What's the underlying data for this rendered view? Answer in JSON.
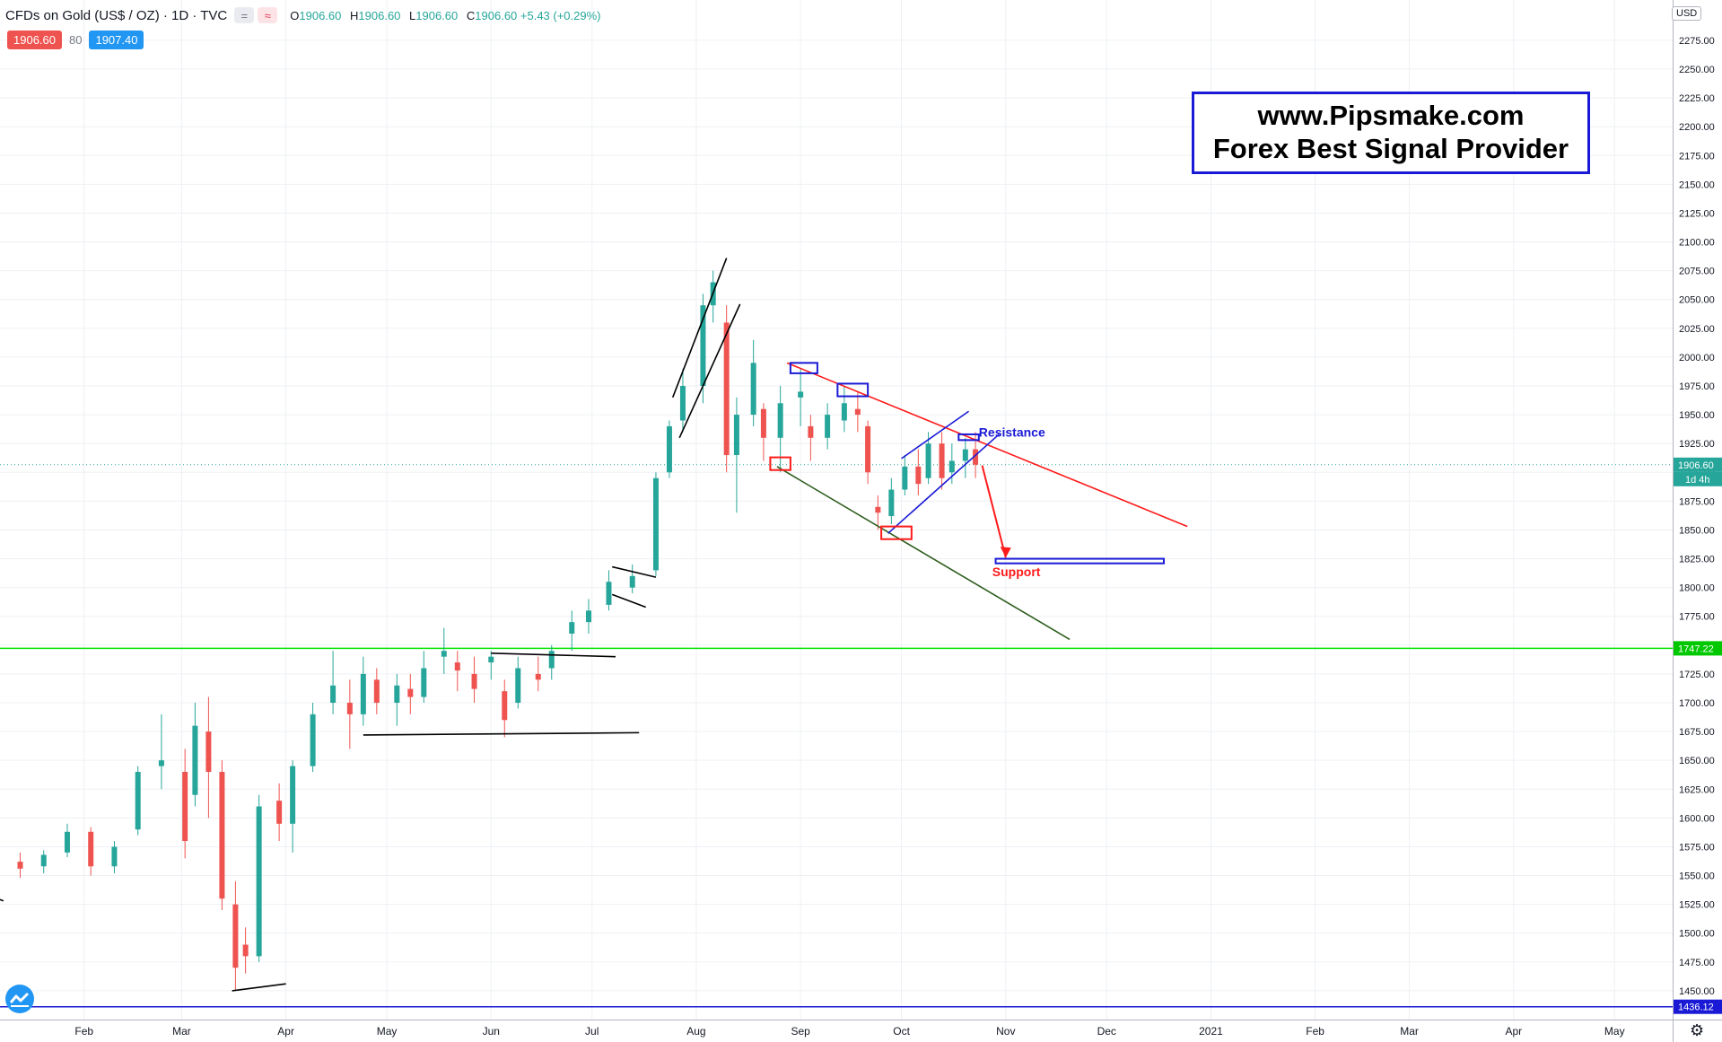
{
  "header": {
    "title": "CFDs on Gold (US$ / OZ) · 1D · TVC",
    "btn_grey": "=",
    "btn_pink": "≈",
    "open_k": "O",
    "open_v": "1906.60",
    "high_k": "H",
    "high_v": "1906.60",
    "low_k": "L",
    "low_v": "1906.60",
    "close_k": "C",
    "close_v": "1906.60 +5.43 (+0.29%)"
  },
  "prices": {
    "bid": "1906.60",
    "spread": "80",
    "ask": "1907.40"
  },
  "currency": "USD",
  "banner": {
    "line1": "www.Pipsmake.com",
    "line2": "Forex Best Signal Provider"
  },
  "colors": {
    "up": "#26a69a",
    "down": "#ef5350",
    "grid": "#eef0f4",
    "green_line": "#00e600",
    "blue": "#1a1ad6",
    "red": "#ff1a1a",
    "dark_green": "#2e5e1e"
  },
  "icons": {
    "logo": "tradingview-logo-icon",
    "settings": "gear-icon"
  },
  "chart_data": {
    "type": "candlestick",
    "ylim": [
      1425,
      2310
    ],
    "y_ticks": [
      1450,
      1475,
      1500,
      1525,
      1550,
      1575,
      1600,
      1625,
      1650,
      1675,
      1700,
      1725,
      1750,
      1775,
      1800,
      1825,
      1850,
      1875,
      1900,
      1925,
      1950,
      1975,
      2000,
      2025,
      2050,
      2075,
      2100,
      2125,
      2150,
      2175,
      2200,
      2225,
      2250,
      2275
    ],
    "x_ticks": [
      {
        "label": "Feb",
        "t": "2020-02-01"
      },
      {
        "label": "Mar",
        "t": "2020-03-01"
      },
      {
        "label": "Apr",
        "t": "2020-04-01"
      },
      {
        "label": "May",
        "t": "2020-05-01"
      },
      {
        "label": "Jun",
        "t": "2020-06-01"
      },
      {
        "label": "Jul",
        "t": "2020-07-01"
      },
      {
        "label": "Aug",
        "t": "2020-08-01"
      },
      {
        "label": "Sep",
        "t": "2020-09-01"
      },
      {
        "label": "Oct",
        "t": "2020-10-01"
      },
      {
        "label": "Nov",
        "t": "2020-11-01"
      },
      {
        "label": "Dec",
        "t": "2020-12-01"
      },
      {
        "label": "2021",
        "t": "2021-01-01"
      },
      {
        "label": "Feb",
        "t": "2021-02-01"
      },
      {
        "label": "Mar",
        "t": "2021-03-01"
      },
      {
        "label": "Apr",
        "t": "2021-04-01"
      },
      {
        "label": "May",
        "t": "2021-05-01"
      }
    ],
    "price_labels": [
      {
        "value": 1906.6,
        "label": "1906.60",
        "sub": "1d 4h",
        "color": "#26a69a"
      },
      {
        "value": 1747.22,
        "label": "1747.22",
        "color": "#00c800"
      },
      {
        "value": 1436.12,
        "label": "1436.12",
        "color": "#1a1ad6"
      }
    ],
    "horizontal_lines": [
      {
        "value": 1747.22,
        "color": "#00e600"
      },
      {
        "value": 1436.12,
        "color": "#1a1ad6"
      }
    ],
    "candles": [
      {
        "t": "2020-01-06",
        "o": 1565,
        "h": 1585,
        "l": 1558,
        "c": 1574
      },
      {
        "t": "2020-01-13",
        "o": 1562,
        "h": 1570,
        "l": 1548,
        "c": 1556
      },
      {
        "t": "2020-01-20",
        "o": 1558,
        "h": 1572,
        "l": 1552,
        "c": 1568
      },
      {
        "t": "2020-01-27",
        "o": 1570,
        "h": 1595,
        "l": 1566,
        "c": 1588
      },
      {
        "t": "2020-02-03",
        "o": 1588,
        "h": 1592,
        "l": 1550,
        "c": 1558
      },
      {
        "t": "2020-02-10",
        "o": 1558,
        "h": 1580,
        "l": 1552,
        "c": 1575
      },
      {
        "t": "2020-02-17",
        "o": 1590,
        "h": 1645,
        "l": 1585,
        "c": 1640
      },
      {
        "t": "2020-02-24",
        "o": 1645,
        "h": 1690,
        "l": 1625,
        "c": 1650
      },
      {
        "t": "2020-03-02",
        "o": 1640,
        "h": 1660,
        "l": 1565,
        "c": 1580
      },
      {
        "t": "2020-03-05",
        "o": 1620,
        "h": 1700,
        "l": 1610,
        "c": 1680
      },
      {
        "t": "2020-03-09",
        "o": 1675,
        "h": 1705,
        "l": 1600,
        "c": 1640
      },
      {
        "t": "2020-03-13",
        "o": 1640,
        "h": 1650,
        "l": 1520,
        "c": 1530
      },
      {
        "t": "2020-03-17",
        "o": 1525,
        "h": 1545,
        "l": 1450,
        "c": 1470
      },
      {
        "t": "2020-03-20",
        "o": 1490,
        "h": 1505,
        "l": 1465,
        "c": 1480
      },
      {
        "t": "2020-03-24",
        "o": 1480,
        "h": 1620,
        "l": 1475,
        "c": 1610
      },
      {
        "t": "2020-03-30",
        "o": 1615,
        "h": 1630,
        "l": 1580,
        "c": 1595
      },
      {
        "t": "2020-04-03",
        "o": 1595,
        "h": 1650,
        "l": 1570,
        "c": 1645
      },
      {
        "t": "2020-04-09",
        "o": 1645,
        "h": 1700,
        "l": 1640,
        "c": 1690
      },
      {
        "t": "2020-04-15",
        "o": 1700,
        "h": 1745,
        "l": 1690,
        "c": 1715
      },
      {
        "t": "2020-04-20",
        "o": 1700,
        "h": 1720,
        "l": 1660,
        "c": 1690
      },
      {
        "t": "2020-04-24",
        "o": 1690,
        "h": 1740,
        "l": 1680,
        "c": 1725
      },
      {
        "t": "2020-04-28",
        "o": 1720,
        "h": 1730,
        "l": 1690,
        "c": 1700
      },
      {
        "t": "2020-05-04",
        "o": 1700,
        "h": 1725,
        "l": 1680,
        "c": 1715
      },
      {
        "t": "2020-05-08",
        "o": 1712,
        "h": 1725,
        "l": 1690,
        "c": 1705
      },
      {
        "t": "2020-05-12",
        "o": 1705,
        "h": 1745,
        "l": 1700,
        "c": 1730
      },
      {
        "t": "2020-05-18",
        "o": 1740,
        "h": 1765,
        "l": 1725,
        "c": 1745
      },
      {
        "t": "2020-05-22",
        "o": 1735,
        "h": 1745,
        "l": 1710,
        "c": 1728
      },
      {
        "t": "2020-05-27",
        "o": 1725,
        "h": 1740,
        "l": 1700,
        "c": 1712
      },
      {
        "t": "2020-06-01",
        "o": 1735,
        "h": 1745,
        "l": 1720,
        "c": 1740
      },
      {
        "t": "2020-06-05",
        "o": 1710,
        "h": 1720,
        "l": 1670,
        "c": 1685
      },
      {
        "t": "2020-06-09",
        "o": 1700,
        "h": 1740,
        "l": 1695,
        "c": 1730
      },
      {
        "t": "2020-06-15",
        "o": 1725,
        "h": 1740,
        "l": 1710,
        "c": 1720
      },
      {
        "t": "2020-06-19",
        "o": 1730,
        "h": 1750,
        "l": 1720,
        "c": 1745
      },
      {
        "t": "2020-06-25",
        "o": 1760,
        "h": 1780,
        "l": 1745,
        "c": 1770
      },
      {
        "t": "2020-06-30",
        "o": 1770,
        "h": 1790,
        "l": 1760,
        "c": 1780
      },
      {
        "t": "2020-07-06",
        "o": 1785,
        "h": 1815,
        "l": 1780,
        "c": 1805
      },
      {
        "t": "2020-07-13",
        "o": 1800,
        "h": 1820,
        "l": 1795,
        "c": 1810
      },
      {
        "t": "2020-07-20",
        "o": 1815,
        "h": 1900,
        "l": 1810,
        "c": 1895
      },
      {
        "t": "2020-07-24",
        "o": 1900,
        "h": 1945,
        "l": 1895,
        "c": 1940
      },
      {
        "t": "2020-07-28",
        "o": 1945,
        "h": 1990,
        "l": 1935,
        "c": 1975
      },
      {
        "t": "2020-08-03",
        "o": 1975,
        "h": 2055,
        "l": 1960,
        "c": 2045
      },
      {
        "t": "2020-08-06",
        "o": 2045,
        "h": 2075,
        "l": 2030,
        "c": 2065
      },
      {
        "t": "2020-08-10",
        "o": 2030,
        "h": 2045,
        "l": 1900,
        "c": 1915
      },
      {
        "t": "2020-08-13",
        "o": 1915,
        "h": 1965,
        "l": 1865,
        "c": 1950
      },
      {
        "t": "2020-08-18",
        "o": 1950,
        "h": 2015,
        "l": 1940,
        "c": 1995
      },
      {
        "t": "2020-08-21",
        "o": 1955,
        "h": 1960,
        "l": 1910,
        "c": 1930
      },
      {
        "t": "2020-08-26",
        "o": 1930,
        "h": 1975,
        "l": 1900,
        "c": 1960
      },
      {
        "t": "2020-09-01",
        "o": 1965,
        "h": 1990,
        "l": 1940,
        "c": 1970
      },
      {
        "t": "2020-09-04",
        "o": 1940,
        "h": 1950,
        "l": 1910,
        "c": 1930
      },
      {
        "t": "2020-09-09",
        "o": 1930,
        "h": 1960,
        "l": 1920,
        "c": 1950
      },
      {
        "t": "2020-09-14",
        "o": 1945,
        "h": 1975,
        "l": 1935,
        "c": 1960
      },
      {
        "t": "2020-09-18",
        "o": 1955,
        "h": 1970,
        "l": 1935,
        "c": 1950
      },
      {
        "t": "2020-09-21",
        "o": 1940,
        "h": 1945,
        "l": 1890,
        "c": 1900
      },
      {
        "t": "2020-09-24",
        "o": 1870,
        "h": 1880,
        "l": 1850,
        "c": 1865
      },
      {
        "t": "2020-09-28",
        "o": 1862,
        "h": 1895,
        "l": 1855,
        "c": 1885
      },
      {
        "t": "2020-10-02",
        "o": 1885,
        "h": 1915,
        "l": 1880,
        "c": 1905
      },
      {
        "t": "2020-10-06",
        "o": 1905,
        "h": 1920,
        "l": 1880,
        "c": 1890
      },
      {
        "t": "2020-10-09",
        "o": 1895,
        "h": 1935,
        "l": 1890,
        "c": 1925
      },
      {
        "t": "2020-10-13",
        "o": 1925,
        "h": 1935,
        "l": 1885,
        "c": 1895
      },
      {
        "t": "2020-10-16",
        "o": 1900,
        "h": 1925,
        "l": 1890,
        "c": 1910
      },
      {
        "t": "2020-10-20",
        "o": 1910,
        "h": 1930,
        "l": 1895,
        "c": 1920
      },
      {
        "t": "2020-10-23",
        "o": 1920,
        "h": 1935,
        "l": 1895,
        "c": 1906.6
      }
    ],
    "annotations": {
      "resistance_label": "Resistance",
      "support_label": "Support",
      "trend_lines": [
        {
          "color": "#ff1a1a",
          "from": [
            "2020-08-28",
            1995
          ],
          "to": [
            "2020-12-25",
            1853
          ]
        },
        {
          "color": "#2e5e1e",
          "from": [
            "2020-08-25",
            1905
          ],
          "to": [
            "2020-11-20",
            1755
          ]
        },
        {
          "color": "#1a1ad6",
          "from": [
            "2020-09-27",
            1847
          ],
          "to": [
            "2020-10-30",
            1933
          ]
        },
        {
          "color": "#1a1ad6",
          "from": [
            "2020-10-01",
            1912
          ],
          "to": [
            "2020-10-21",
            1953
          ]
        },
        {
          "color": "#000000",
          "from": [
            "2020-07-25",
            1965
          ],
          "to": [
            "2020-08-10",
            2086
          ]
        },
        {
          "color": "#000000",
          "from": [
            "2020-07-27",
            1930
          ],
          "to": [
            "2020-08-14",
            2046
          ]
        },
        {
          "color": "#000000",
          "from": [
            "2020-04-24",
            1672
          ],
          "to": [
            "2020-07-15",
            1674
          ]
        },
        {
          "color": "#000000",
          "from": [
            "2020-06-01",
            1743
          ],
          "to": [
            "2020-07-08",
            1740
          ]
        },
        {
          "color": "#000000",
          "from": [
            "2020-03-16",
            1450
          ],
          "to": [
            "2020-04-01",
            1456
          ]
        },
        {
          "color": "#000000",
          "from": [
            "2020-07-07",
            1818
          ],
          "to": [
            "2020-07-20",
            1809
          ]
        },
        {
          "color": "#000000",
          "from": [
            "2020-07-07",
            1794
          ],
          "to": [
            "2020-07-17",
            1783
          ]
        },
        {
          "color": "#000000",
          "from": [
            "2020-01-01",
            1536
          ],
          "to": [
            "2020-01-08",
            1528
          ]
        }
      ],
      "rectangles": [
        {
          "color": "#1a1ad6",
          "from": [
            "2020-08-29",
            1995
          ],
          "to": [
            "2020-09-06",
            1986
          ]
        },
        {
          "color": "#1a1ad6",
          "from": [
            "2020-09-12",
            1977
          ],
          "to": [
            "2020-09-21",
            1966
          ]
        },
        {
          "color": "#1a1ad6",
          "from": [
            "2020-10-18",
            1933
          ],
          "to": [
            "2020-10-24",
            1928
          ]
        },
        {
          "color": "#1a1ad6",
          "from": [
            "2020-10-29",
            1825
          ],
          "to": [
            "2020-12-18",
            1821
          ]
        },
        {
          "color": "#ff1a1a",
          "from": [
            "2020-08-23",
            1913
          ],
          "to": [
            "2020-08-29",
            1902
          ]
        },
        {
          "color": "#ff1a1a",
          "from": [
            "2020-09-25",
            1853
          ],
          "to": [
            "2020-10-04",
            1842
          ]
        }
      ],
      "arrow": {
        "color": "#ff1a1a",
        "from": [
          "2020-10-25",
          1906
        ],
        "to": [
          "2020-11-01",
          1826
        ]
      }
    }
  }
}
